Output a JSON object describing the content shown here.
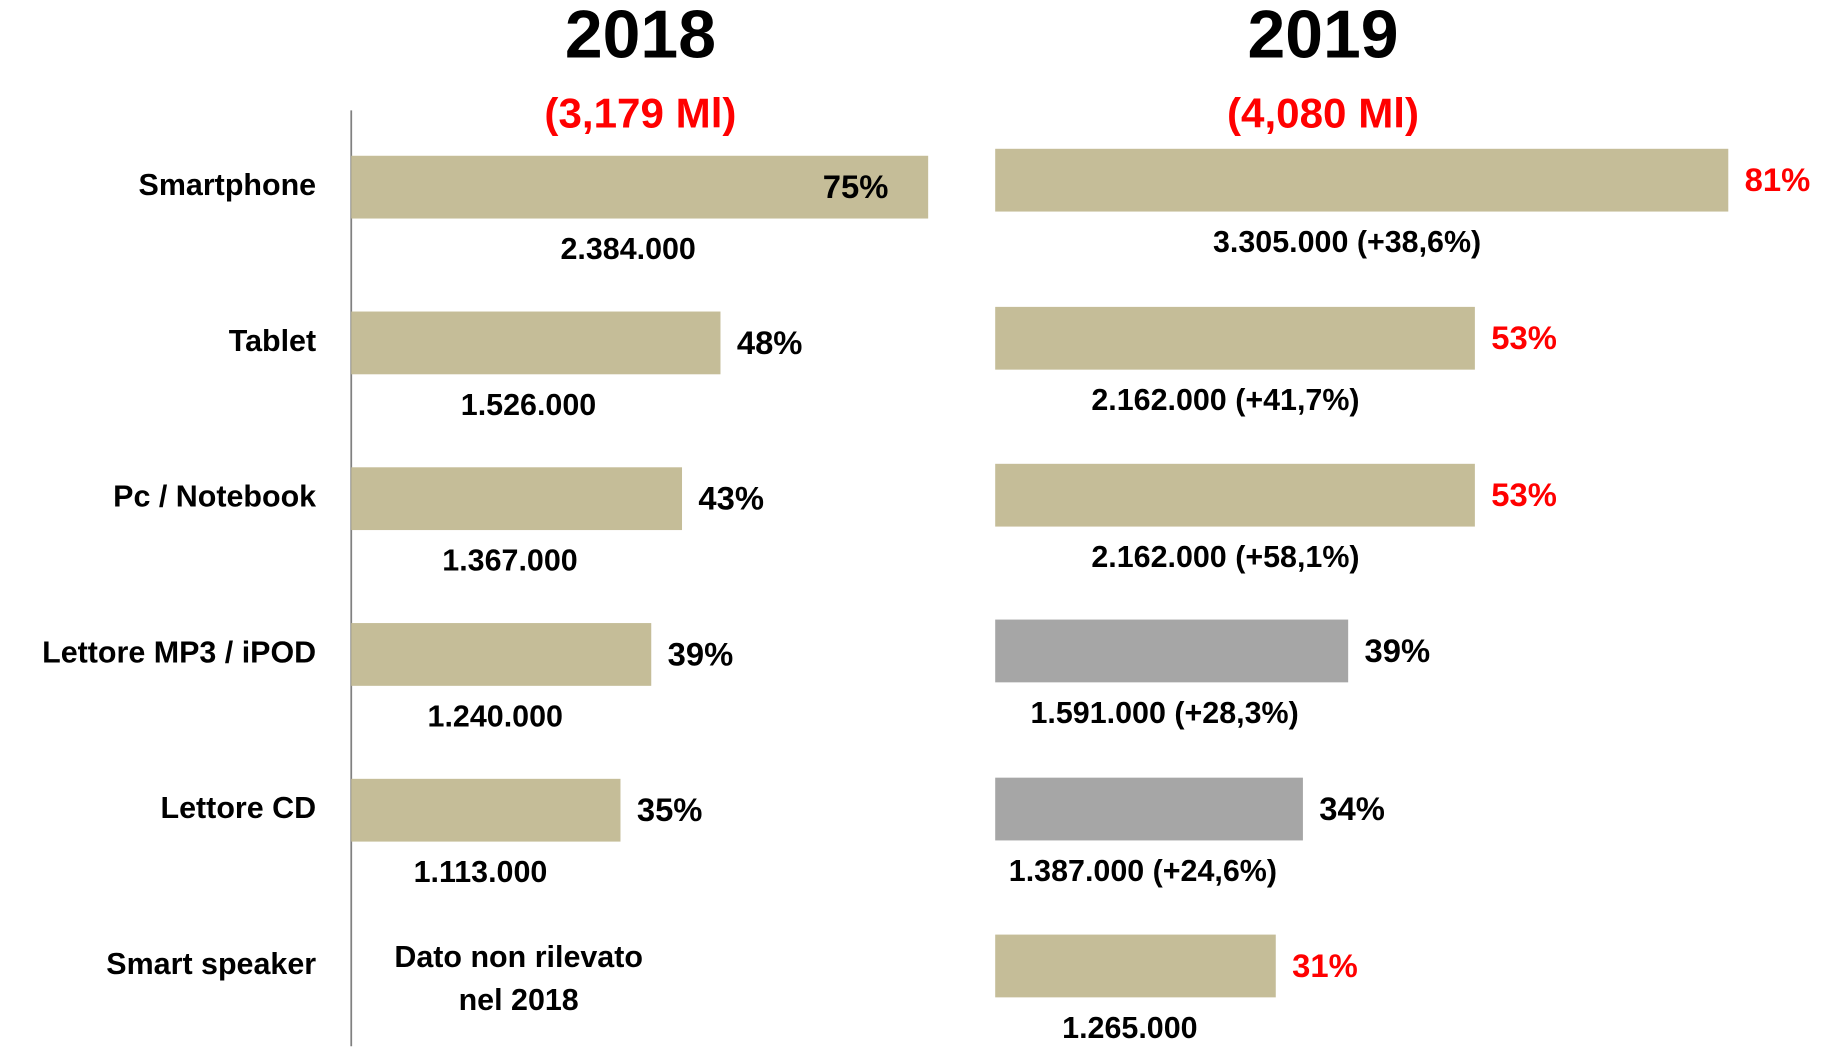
{
  "chart_data": [
    {
      "type": "bar",
      "orientation": "horizontal",
      "title": "2018",
      "subtitle": "(3,179 Ml)",
      "categories": [
        "Smartphone",
        "Tablet",
        "Pc / Notebook",
        "Lettore MP3 / iPOD",
        "Lettore CD",
        "Smart speaker"
      ],
      "values": [
        75,
        48,
        43,
        39,
        35,
        null
      ],
      "value_labels": [
        "75%",
        "48%",
        "43%",
        "39%",
        "35%",
        null
      ],
      "sublabels": [
        "2.384.000",
        "1.526.000",
        "1.367.000",
        "1.240.000",
        "1.113.000",
        null
      ],
      "colors": [
        "#c5bd98",
        "#c5bd98",
        "#c5bd98",
        "#c5bd98",
        "#c5bd98",
        null
      ],
      "label_colors": [
        "#000000",
        "#000000",
        "#000000",
        "#000000",
        "#000000",
        null
      ],
      "annotation": [
        "Dato non rilevato",
        "nel 2018"
      ],
      "xlim": [
        0,
        100
      ]
    },
    {
      "type": "bar",
      "orientation": "horizontal",
      "title": "2019",
      "subtitle": "(4,080 Ml)",
      "values": [
        81,
        53,
        53,
        39,
        34,
        31
      ],
      "value_labels": [
        "81%",
        "53%",
        "53%",
        "39%",
        "34%",
        "31%"
      ],
      "sublabels": [
        "3.305.000 (+38,6%)",
        "2.162.000 (+41,7%)",
        "2.162.000 (+58,1%)",
        "1.591.000 (+28,3%)",
        "1.387.000 (+24,6%)",
        "1.265.000"
      ],
      "colors": [
        "#c5bd98",
        "#c5bd98",
        "#c5bd98",
        "#a6a6a6",
        "#a6a6a6",
        "#c5bd98"
      ],
      "label_colors": [
        "#ff0000",
        "#ff0000",
        "#ff0000",
        "#000000",
        "#000000",
        "#ff0000"
      ],
      "xlim": [
        0,
        100
      ]
    }
  ]
}
